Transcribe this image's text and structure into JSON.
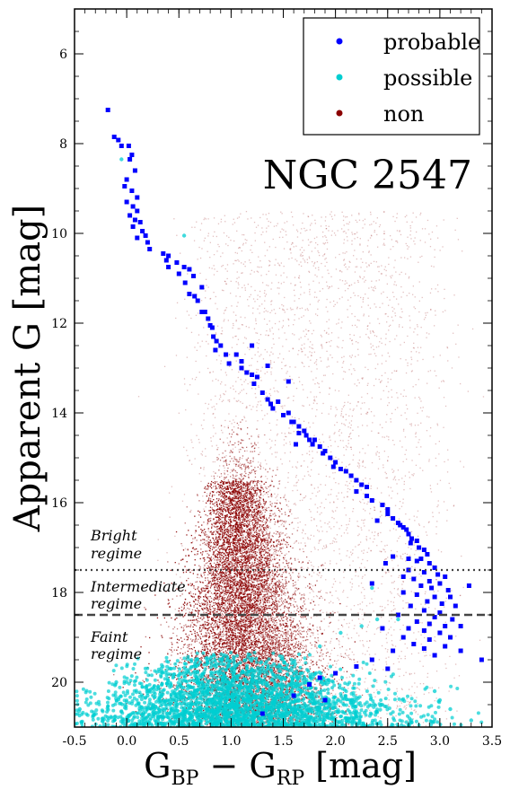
{
  "chart_data": {
    "type": "scatter",
    "title": "",
    "cluster_label": "NGC 2547",
    "xlabel": "G_BP − G_RP [mag]",
    "xlabel_parts": {
      "main1": "G",
      "sub1": "BP",
      "op": " − G",
      "sub2": "RP",
      "unit": " [mag]"
    },
    "ylabel": "Apparent G [mag]",
    "xlim": [
      -0.5,
      3.5
    ],
    "ylim": [
      21.0,
      5.0
    ],
    "y_inverted": true,
    "grid": false,
    "legend_position": "top-right",
    "x_ticks": [
      "-0.5",
      "0.0",
      "0.5",
      "1.0",
      "1.5",
      "2.0",
      "2.5",
      "3.0",
      "3.5"
    ],
    "x_tick_values": [
      -0.5,
      0.0,
      0.5,
      1.0,
      1.5,
      2.0,
      2.5,
      3.0,
      3.5
    ],
    "y_ticks": [
      "6",
      "8",
      "10",
      "12",
      "14",
      "16",
      "18",
      "20"
    ],
    "y_tick_values": [
      6,
      8,
      10,
      12,
      14,
      16,
      18,
      20
    ],
    "series": [
      {
        "name": "probable",
        "color": "#0000ff",
        "marker": "square"
      },
      {
        "name": "possible",
        "color": "#00ced1",
        "marker": "circle"
      },
      {
        "name": "non",
        "color": "#8b0000",
        "marker": "point"
      }
    ],
    "probable_points": [
      [
        -0.18,
        7.25
      ],
      [
        -0.12,
        7.85
      ],
      [
        -0.08,
        7.92
      ],
      [
        -0.05,
        8.05
      ],
      [
        0.02,
        8.05
      ],
      [
        0.05,
        8.25
      ],
      [
        0.03,
        8.35
      ],
      [
        0.08,
        8.6
      ],
      [
        0.0,
        8.8
      ],
      [
        -0.02,
        8.95
      ],
      [
        0.05,
        9.05
      ],
      [
        0.1,
        9.2
      ],
      [
        0.0,
        9.3
      ],
      [
        0.06,
        9.4
      ],
      [
        0.1,
        9.5
      ],
      [
        0.03,
        9.6
      ],
      [
        0.08,
        9.7
      ],
      [
        0.13,
        9.75
      ],
      [
        0.06,
        9.85
      ],
      [
        0.15,
        9.95
      ],
      [
        0.18,
        10.05
      ],
      [
        0.1,
        10.1
      ],
      [
        0.2,
        10.2
      ],
      [
        0.22,
        10.35
      ],
      [
        0.35,
        10.45
      ],
      [
        0.4,
        10.5
      ],
      [
        0.38,
        10.6
      ],
      [
        0.48,
        10.65
      ],
      [
        0.4,
        10.75
      ],
      [
        0.55,
        10.75
      ],
      [
        0.6,
        10.8
      ],
      [
        0.5,
        10.9
      ],
      [
        0.64,
        10.95
      ],
      [
        0.56,
        11.1
      ],
      [
        0.72,
        11.2
      ],
      [
        0.6,
        11.35
      ],
      [
        0.65,
        11.4
      ],
      [
        0.68,
        11.5
      ],
      [
        0.75,
        11.75
      ],
      [
        0.72,
        11.75
      ],
      [
        0.78,
        11.9
      ],
      [
        0.8,
        12.05
      ],
      [
        0.82,
        12.1
      ],
      [
        0.83,
        12.3
      ],
      [
        0.86,
        12.4
      ],
      [
        0.9,
        12.5
      ],
      [
        0.85,
        12.6
      ],
      [
        0.95,
        12.7
      ],
      [
        1.05,
        12.7
      ],
      [
        1.1,
        12.85
      ],
      [
        0.98,
        12.9
      ],
      [
        1.1,
        13.0
      ],
      [
        1.15,
        13.1
      ],
      [
        1.2,
        13.15
      ],
      [
        1.25,
        13.2
      ],
      [
        1.22,
        13.35
      ],
      [
        1.3,
        13.55
      ],
      [
        1.35,
        13.7
      ],
      [
        1.38,
        13.8
      ],
      [
        1.45,
        13.75
      ],
      [
        1.55,
        13.3
      ],
      [
        1.4,
        13.9
      ],
      [
        1.5,
        14.05
      ],
      [
        1.55,
        14.0
      ],
      [
        1.58,
        14.2
      ],
      [
        1.6,
        14.2
      ],
      [
        1.65,
        14.3
      ],
      [
        1.7,
        14.4
      ],
      [
        1.75,
        14.6
      ],
      [
        1.65,
        14.45
      ],
      [
        1.8,
        14.6
      ],
      [
        1.72,
        14.5
      ],
      [
        1.78,
        14.7
      ],
      [
        1.62,
        14.7
      ],
      [
        1.85,
        14.75
      ],
      [
        1.9,
        14.85
      ],
      [
        1.88,
        14.9
      ],
      [
        1.95,
        15.0
      ],
      [
        2.0,
        15.1
      ],
      [
        1.98,
        15.2
      ],
      [
        2.05,
        15.25
      ],
      [
        2.1,
        15.3
      ],
      [
        2.15,
        15.4
      ],
      [
        2.2,
        15.5
      ],
      [
        2.25,
        15.6
      ],
      [
        2.3,
        15.65
      ],
      [
        2.2,
        15.75
      ],
      [
        2.3,
        15.85
      ],
      [
        2.35,
        15.95
      ],
      [
        2.45,
        16.05
      ],
      [
        2.5,
        16.15
      ],
      [
        2.5,
        16.25
      ],
      [
        2.55,
        16.35
      ],
      [
        2.4,
        16.4
      ],
      [
        2.6,
        16.45
      ],
      [
        2.62,
        16.5
      ],
      [
        2.65,
        16.55
      ],
      [
        2.68,
        16.6
      ],
      [
        2.7,
        16.7
      ],
      [
        2.73,
        16.8
      ],
      [
        2.78,
        16.85
      ],
      [
        2.72,
        16.9
      ],
      [
        2.8,
        17.0
      ],
      [
        2.85,
        17.05
      ],
      [
        2.88,
        17.15
      ],
      [
        2.82,
        17.25
      ],
      [
        2.7,
        17.25
      ],
      [
        2.78,
        17.3
      ],
      [
        2.9,
        17.35
      ],
      [
        2.95,
        17.45
      ],
      [
        2.7,
        17.5
      ],
      [
        2.85,
        17.55
      ],
      [
        2.98,
        17.6
      ],
      [
        2.75,
        17.7
      ],
      [
        2.9,
        17.75
      ],
      [
        3.05,
        17.65
      ],
      [
        3.0,
        17.8
      ],
      [
        2.82,
        17.85
      ],
      [
        2.92,
        17.9
      ],
      [
        3.08,
        17.95
      ],
      [
        2.65,
        18.0
      ],
      [
        2.78,
        18.05
      ],
      [
        2.95,
        18.1
      ],
      [
        3.1,
        18.1
      ],
      [
        2.88,
        18.2
      ],
      [
        3.02,
        18.25
      ],
      [
        2.72,
        18.3
      ],
      [
        3.15,
        18.3
      ],
      [
        2.85,
        18.4
      ],
      [
        3.0,
        18.45
      ],
      [
        2.6,
        18.5
      ],
      [
        2.95,
        18.55
      ],
      [
        3.12,
        18.6
      ],
      [
        2.78,
        18.65
      ],
      [
        2.9,
        18.7
      ],
      [
        3.05,
        18.75
      ],
      [
        3.2,
        18.75
      ],
      [
        2.7,
        18.8
      ],
      [
        2.85,
        18.85
      ],
      [
        3.0,
        18.9
      ],
      [
        2.65,
        19.0
      ],
      [
        3.1,
        19.0
      ],
      [
        2.9,
        19.05
      ],
      [
        2.75,
        19.15
      ],
      [
        3.05,
        19.2
      ],
      [
        2.85,
        19.25
      ],
      [
        2.55,
        19.3
      ],
      [
        3.2,
        19.3
      ],
      [
        2.95,
        19.4
      ],
      [
        3.4,
        19.5
      ],
      [
        2.35,
        19.5
      ],
      [
        2.2,
        19.65
      ],
      [
        2.0,
        19.8
      ],
      [
        1.85,
        19.9
      ],
      [
        1.75,
        20.05
      ],
      [
        1.6,
        20.3
      ],
      [
        1.9,
        20.4
      ],
      [
        1.3,
        20.7
      ],
      [
        2.5,
        19.7
      ],
      [
        2.45,
        18.8
      ],
      [
        2.35,
        17.8
      ],
      [
        2.55,
        17.2
      ],
      [
        2.48,
        17.35
      ],
      [
        2.65,
        17.65
      ],
      [
        3.28,
        17.85
      ],
      [
        1.35,
        12.95
      ],
      [
        1.2,
        12.5
      ]
    ],
    "possible_points": [
      [
        0.55,
        10.05
      ],
      [
        -0.05,
        8.35
      ],
      [
        2.05,
        18.9
      ],
      [
        2.25,
        18.75
      ],
      [
        1.85,
        19.2
      ],
      [
        2.4,
        18.6
      ],
      [
        2.6,
        18.6
      ],
      [
        2.35,
        17.9
      ],
      [
        -0.45,
        20.6
      ],
      [
        3.3,
        20.85
      ],
      [
        -0.1,
        20.0
      ],
      [
        0.2,
        20.3
      ],
      [
        3.1,
        20.6
      ],
      [
        2.95,
        20.2
      ],
      [
        3.0,
        20.4
      ]
    ],
    "possible_cloud": {
      "x_center": 1.05,
      "x_spread": 0.9,
      "g_min": 19.3,
      "g_max": 21.0
    },
    "non_cloud": {
      "description": "field stars",
      "g_min": 9.5,
      "g_max": 21.0
    },
    "regime_lines": [
      {
        "g": 17.5,
        "style": "dotted"
      },
      {
        "g": 18.5,
        "style": "dashed"
      }
    ],
    "regime_labels": [
      {
        "line1": "Bright",
        "line2": "regime"
      },
      {
        "line1": "Intermediate",
        "line2": "regime"
      },
      {
        "line1": "Faint",
        "line2": "regime"
      }
    ]
  }
}
